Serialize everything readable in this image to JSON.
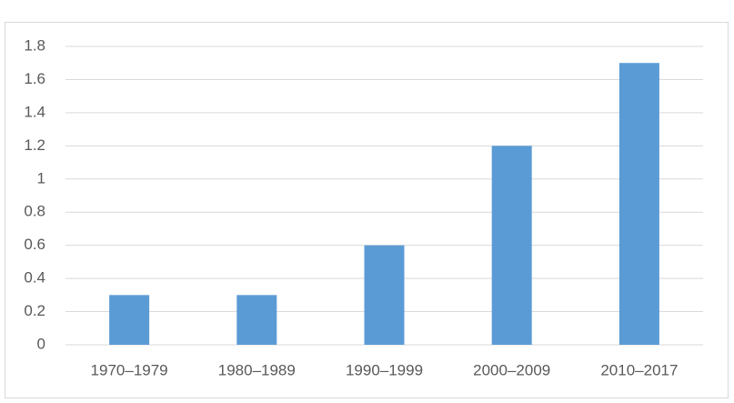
{
  "chart_data": {
    "type": "bar",
    "categories": [
      "1970–1979",
      "1980–1989",
      "1990–1999",
      "2000–2009",
      "2010–2017"
    ],
    "values": [
      0.3,
      0.3,
      0.6,
      1.2,
      1.7
    ],
    "color": "#5b9bd5",
    "ylim": [
      0,
      1.8
    ],
    "yticks": [
      0,
      0.2,
      0.4,
      0.6,
      0.8,
      1,
      1.2,
      1.4,
      1.6,
      1.8
    ],
    "grid": true
  }
}
